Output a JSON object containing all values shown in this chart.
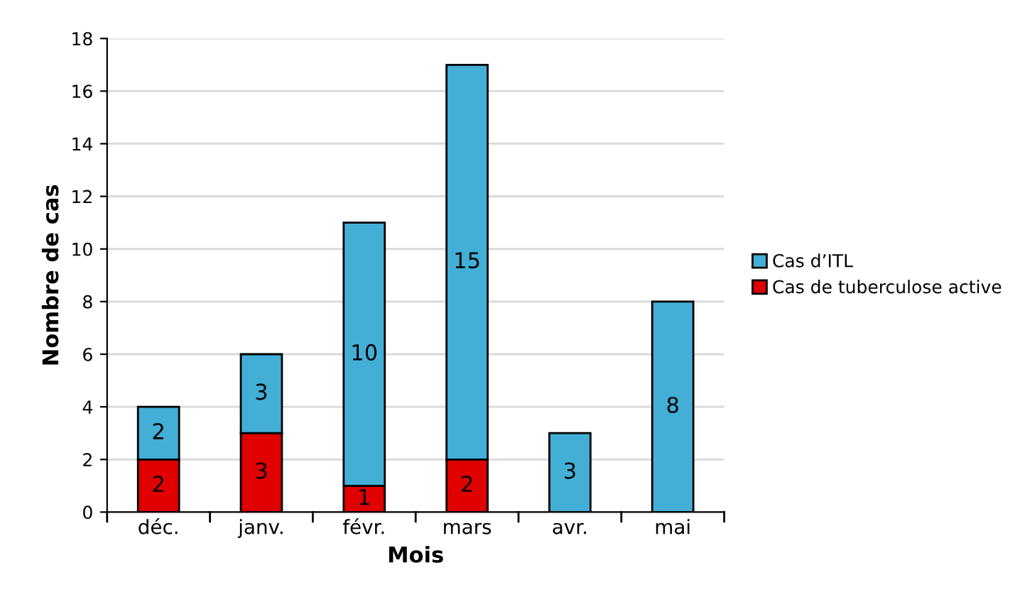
{
  "chart_data": {
    "type": "bar",
    "stacked": true,
    "xlabel": "Mois",
    "ylabel": "Nombre de cas",
    "categories": [
      "déc.",
      "janv.",
      "févr.",
      "mars",
      "avr.",
      "mai"
    ],
    "series": [
      {
        "name": "Cas de tuberculose active",
        "color": "#e00000",
        "values": [
          2,
          3,
          1,
          2,
          0,
          0
        ],
        "value_labels": [
          "2",
          "3",
          "1",
          "2",
          null,
          null
        ]
      },
      {
        "name": "Cas d’ITL",
        "color": "#43afd7",
        "values": [
          2,
          3,
          10,
          15,
          3,
          8
        ],
        "value_labels": [
          "2",
          "3",
          "10",
          "15",
          "3",
          "8"
        ]
      }
    ],
    "ylim": [
      0,
      18
    ],
    "yticks": [
      0,
      2,
      4,
      6,
      8,
      10,
      12,
      14,
      16,
      18
    ],
    "grid": "y",
    "legend": "right"
  }
}
